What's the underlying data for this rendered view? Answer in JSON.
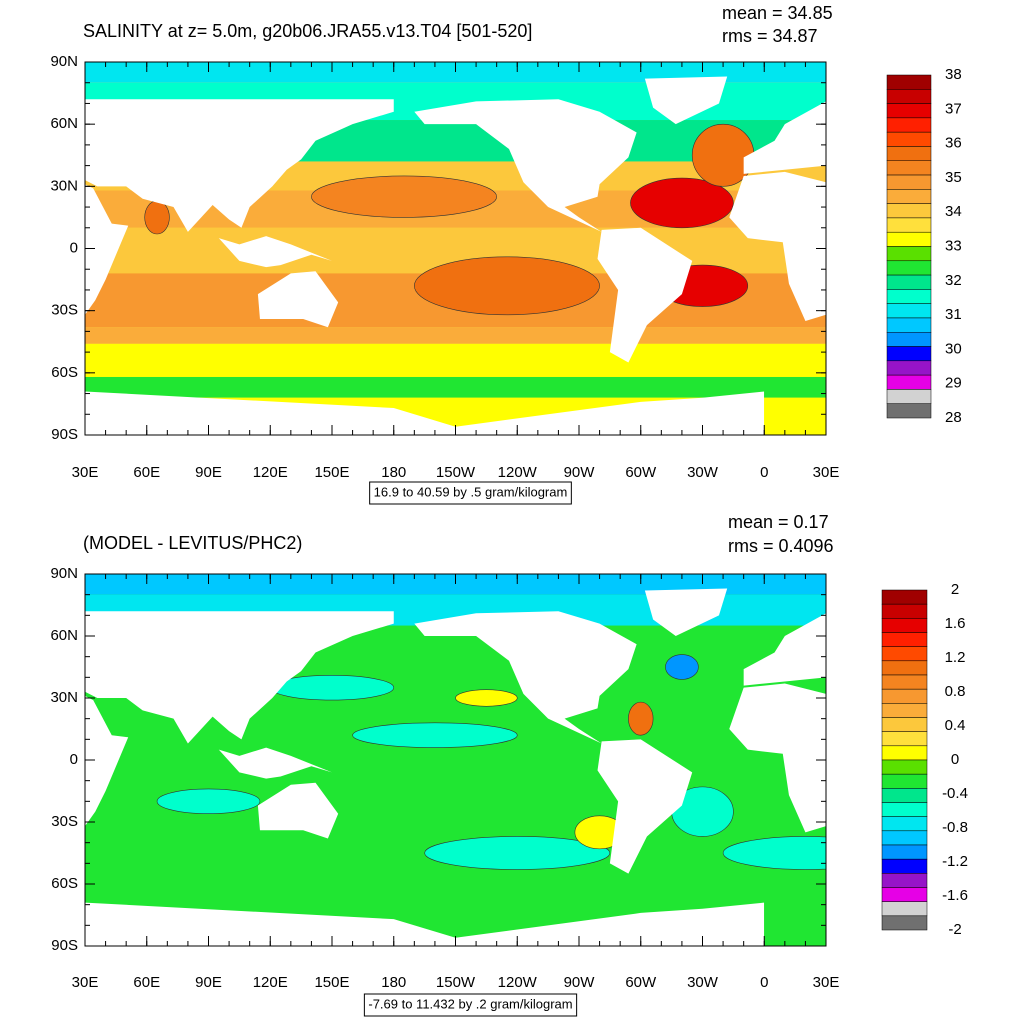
{
  "panels": [
    {
      "title": "SALINITY at z=   5.0m, g20b06.JRA55.v13.T04 [501-520]",
      "mean": "mean = 34.85",
      "rms": "rms = 34.87",
      "info": "16.9 to 40.59 by .5 gram/kilogram",
      "lat_labels": [
        "90N",
        "60N",
        "30N",
        "0",
        "30S",
        "60S",
        "90S"
      ],
      "lon_labels": [
        "30E",
        "60E",
        "90E",
        "120E",
        "150E",
        "180",
        "150W",
        "120W",
        "90W",
        "60W",
        "30W",
        "0",
        "30E"
      ],
      "colorbar": {
        "labels": [
          "38",
          "37",
          "36",
          "35",
          "34",
          "33",
          "32",
          "31",
          "30",
          "29",
          "28"
        ],
        "colors": [
          "#a00000",
          "#c80000",
          "#e60000",
          "#ff2000",
          "#ff4a00",
          "#f07010",
          "#f48420",
          "#f79830",
          "#faac3a",
          "#fcc83c",
          "#ffe03c",
          "#ffff00",
          "#5ae000",
          "#20e632",
          "#00e68c",
          "#00ffcc",
          "#00e6f0",
          "#00c8ff",
          "#0096ff",
          "#0000ff",
          "#9614c8",
          "#e600e6",
          "#d2d2d2",
          "#707070"
        ]
      }
    },
    {
      "title": "(MODEL - LEVITUS/PHC2)",
      "mean": "mean = 0.17",
      "rms": "rms = 0.4096",
      "info": "-7.69 to 11.432 by .2 gram/kilogram",
      "lat_labels": [
        "90N",
        "60N",
        "30N",
        "0",
        "30S",
        "60S",
        "90S"
      ],
      "lon_labels": [
        "30E",
        "60E",
        "90E",
        "120E",
        "150E",
        "180",
        "150W",
        "120W",
        "90W",
        "60W",
        "30W",
        "0",
        "30E"
      ],
      "colorbar": {
        "labels": [
          "2",
          "1.6",
          "1.2",
          "0.8",
          "0.4",
          "0",
          "-0.4",
          "-0.8",
          "-1.2",
          "-1.6",
          "-2"
        ],
        "colors": [
          "#a00000",
          "#c80000",
          "#e60000",
          "#ff2000",
          "#ff4a00",
          "#f07010",
          "#f48420",
          "#f79830",
          "#faac3a",
          "#fcc83c",
          "#ffe03c",
          "#ffff00",
          "#5ae000",
          "#20e632",
          "#00e68c",
          "#00ffcc",
          "#00e6f0",
          "#00c8ff",
          "#0096ff",
          "#0000ff",
          "#9614c8",
          "#e600e6",
          "#d2d2d2",
          "#707070"
        ]
      }
    }
  ]
}
